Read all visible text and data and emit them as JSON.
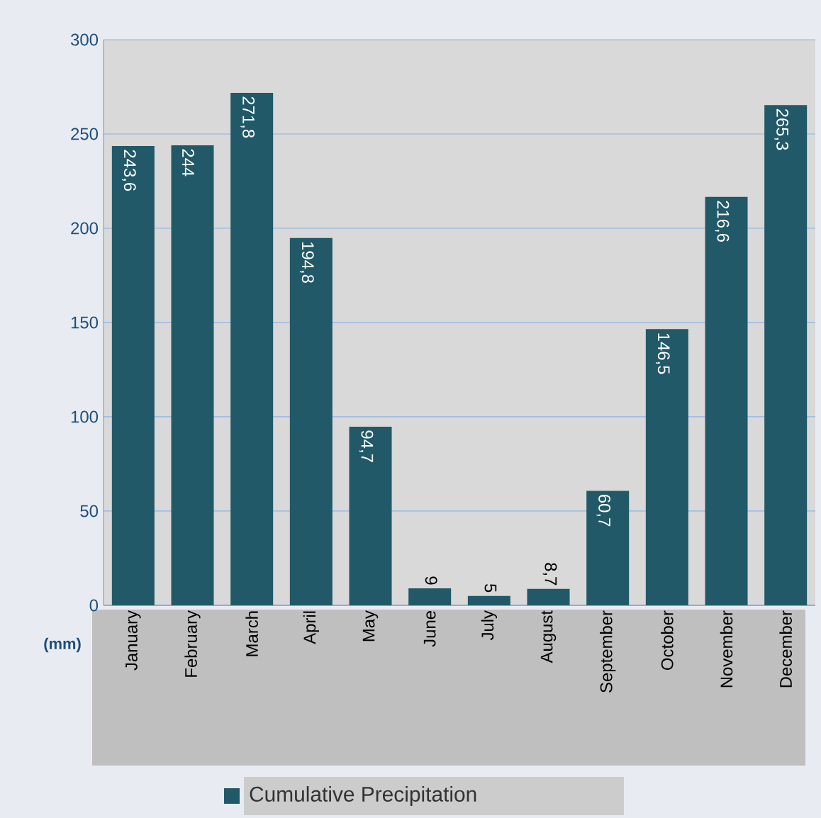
{
  "chart_data": {
    "type": "bar",
    "ylabel": "(mm)",
    "categories": [
      "January",
      "February",
      "March",
      "April",
      "May",
      "June",
      "July",
      "August",
      "September",
      "October",
      "November",
      "December"
    ],
    "series": [
      {
        "name": "Cumulative Precipitation",
        "color": "#215968",
        "values": [
          243.6,
          244,
          271.8,
          194.8,
          94.7,
          9,
          5,
          8.7,
          60.7,
          146.5,
          216.6,
          265.3
        ],
        "value_labels": [
          "243,6",
          "244",
          "271,8",
          "194,8",
          "94,7",
          "9",
          "5",
          "8,7",
          "60,7",
          "146,5",
          "216,6",
          "265,3"
        ]
      }
    ],
    "ylim": [
      0,
      300
    ],
    "yticks": [
      0,
      50,
      100,
      150,
      200,
      250,
      300
    ],
    "grid": "y",
    "legend": "bottom"
  }
}
